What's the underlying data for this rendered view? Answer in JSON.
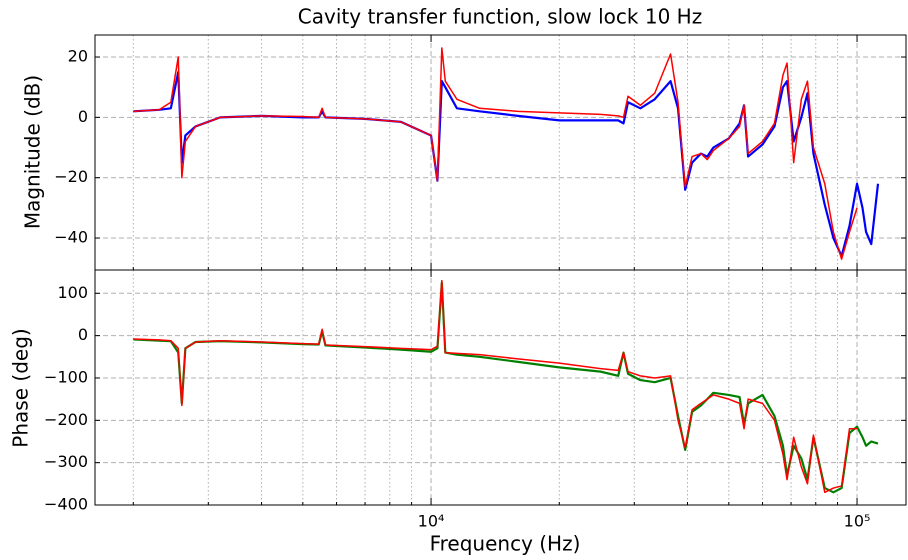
{
  "chart_data": [
    {
      "type": "line",
      "title": "Cavity transfer function, slow lock 10 Hz",
      "ylabel": "Magnitude (dB)",
      "xscale": "log",
      "grid": true,
      "xlim": [
        1626,
        130300
      ],
      "ylim": [
        -50.6,
        27.3
      ],
      "xticks": [
        10000,
        100000
      ],
      "xminorticks": [
        2000,
        3000,
        4000,
        5000,
        6000,
        7000,
        8000,
        9000,
        20000,
        30000,
        40000,
        50000,
        60000,
        70000,
        80000,
        90000
      ],
      "yticks": [
        20,
        0,
        {
          "value": -20,
          "label": "−20"
        },
        {
          "value": -40,
          "label": "−40"
        }
      ],
      "x": [
        2000,
        2300,
        2450,
        2550,
        2600,
        2650,
        2800,
        3200,
        4000,
        5000,
        5450,
        5550,
        5650,
        7000,
        8500,
        10000,
        10350,
        10600,
        10800,
        11500,
        13000,
        16000,
        20000,
        25000,
        27500,
        28300,
        29000,
        31000,
        33500,
        36500,
        38000,
        39500,
        41000,
        43000,
        44500,
        46000,
        50000,
        53000,
        54300,
        55500,
        60000,
        64000,
        67000,
        68500,
        71000,
        74000,
        76500,
        79000,
        84000,
        88000,
        92000,
        96000,
        100000,
        103000,
        105000,
        108000,
        112000
      ],
      "series": [
        {
          "color": "#0000ff",
          "values": [
            2,
            2.5,
            3,
            15,
            -15,
            -6,
            -3,
            0,
            0.5,
            0,
            0,
            2,
            0,
            -0.5,
            -1.5,
            -6,
            -21,
            12,
            10,
            3,
            2,
            0.5,
            -1,
            -1,
            -1,
            -2,
            5,
            3,
            6,
            12,
            3,
            -24,
            -15,
            -12,
            -13,
            -10,
            -7,
            -2,
            4,
            -13,
            -9,
            -3,
            10,
            12,
            -8,
            0,
            8,
            -12,
            -29,
            -40,
            -46,
            -36,
            -22,
            -30,
            -38,
            -42,
            -22
          ]
        },
        {
          "color": "#ff0000",
          "values": [
            2,
            2.5,
            5,
            20,
            -20,
            -8,
            -3,
            0,
            0.5,
            0.3,
            0,
            3,
            0,
            -0.5,
            -1.5,
            -6,
            -21,
            23,
            12,
            6,
            3,
            2,
            1.5,
            1,
            0.5,
            0,
            7,
            4,
            8,
            21,
            5,
            -23,
            -13,
            -12,
            -14,
            -11,
            -7,
            -3,
            4,
            -12,
            -8,
            -2,
            14,
            18,
            -15,
            6,
            12,
            -10,
            -22,
            -38,
            -47,
            -38,
            -30,
            null,
            null,
            null,
            null
          ]
        }
      ]
    },
    {
      "type": "line",
      "xlabel": "Frequency (Hz)",
      "ylabel": "Phase (deg)",
      "xscale": "log",
      "grid": true,
      "xlim": [
        1626,
        130300
      ],
      "ylim": [
        -400,
        155
      ],
      "xticks": [
        {
          "value": 10000,
          "label": "10⁴"
        },
        {
          "value": 100000,
          "label": "10⁵"
        }
      ],
      "xminorticks": [
        2000,
        3000,
        4000,
        5000,
        6000,
        7000,
        8000,
        9000,
        20000,
        30000,
        40000,
        50000,
        60000,
        70000,
        80000,
        90000
      ],
      "yticks": [
        100,
        0,
        {
          "value": -100,
          "label": "−100"
        },
        {
          "value": -200,
          "label": "−200"
        },
        {
          "value": -300,
          "label": "−300"
        },
        {
          "value": -400,
          "label": "−400"
        }
      ],
      "x": [
        2000,
        2300,
        2450,
        2550,
        2600,
        2650,
        2800,
        3200,
        4000,
        5000,
        5450,
        5550,
        5650,
        7000,
        8500,
        10000,
        10350,
        10600,
        10800,
        11500,
        13000,
        16000,
        20000,
        25000,
        27500,
        28300,
        29000,
        31000,
        33500,
        36500,
        38000,
        39500,
        41000,
        43000,
        44500,
        46000,
        50000,
        53000,
        54300,
        55500,
        60000,
        64000,
        67000,
        68500,
        71000,
        74000,
        76500,
        79000,
        84000,
        88000,
        92000,
        96000,
        100000,
        103000,
        105000,
        108000,
        112000
      ],
      "series": [
        {
          "color": "#008000",
          "values": [
            -9,
            -12,
            -13,
            -40,
            -160,
            -30,
            -15,
            -13,
            -16,
            -20,
            -21,
            10,
            -23,
            -28,
            -33,
            -38,
            -30,
            125,
            -40,
            -45,
            -50,
            -62,
            -75,
            -85,
            -95,
            -40,
            -90,
            -105,
            -110,
            -100,
            -190,
            -270,
            -180,
            -165,
            -150,
            -135,
            -140,
            -145,
            -210,
            -160,
            -140,
            -190,
            -260,
            -330,
            -260,
            -290,
            -340,
            -240,
            -360,
            -370,
            -360,
            -230,
            -215,
            -240,
            -260,
            -250,
            -255
          ]
        },
        {
          "color": "#ff0000",
          "values": [
            -8,
            -10,
            -12,
            -30,
            -165,
            -30,
            -15,
            -12,
            -15,
            -19,
            -20,
            15,
            -22,
            -26,
            -30,
            -33,
            -25,
            130,
            -40,
            -42,
            -45,
            -55,
            -65,
            -78,
            -82,
            -40,
            -85,
            -95,
            -100,
            -95,
            -200,
            -265,
            -175,
            -160,
            -150,
            -140,
            -150,
            -160,
            -220,
            -150,
            -160,
            -200,
            -280,
            -340,
            -240,
            -310,
            -350,
            -235,
            -370,
            -360,
            -355,
            -220,
            -220,
            null,
            null,
            null,
            null
          ]
        }
      ]
    }
  ]
}
